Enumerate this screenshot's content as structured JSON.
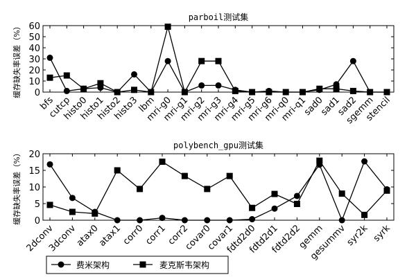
{
  "chart_data": [
    {
      "type": "line",
      "title": "parboil测试集",
      "ylabel": "缓存缺失率误差（%）",
      "ylim": [
        0,
        60
      ],
      "yticks": [
        0,
        10,
        20,
        30,
        40,
        50,
        60
      ],
      "categories": [
        "bfs",
        "cutcp",
        "histo0",
        "histo1",
        "histo2",
        "histo3",
        "lbm",
        "mri-g0",
        "mri-g1",
        "mri-g2",
        "mri-g3",
        "mri-g4",
        "mri-g5",
        "mri-g6",
        "mri-q0",
        "mri-q1",
        "sad0",
        "sad1",
        "sad2",
        "sgemm",
        "stencil"
      ],
      "series": [
        {
          "name": "费米架构",
          "marker": "circle",
          "values": [
            31,
            1,
            3,
            4,
            0,
            16,
            0,
            28,
            0,
            6,
            6,
            2,
            0,
            1,
            0,
            0,
            2,
            7,
            28,
            0,
            0
          ]
        },
        {
          "name": "麦克斯韦架构",
          "marker": "square",
          "values": [
            13,
            15,
            3,
            8,
            0,
            2,
            0,
            59,
            0,
            28,
            28,
            1,
            0,
            0,
            0,
            0,
            3,
            3,
            1,
            0,
            0
          ]
        }
      ],
      "grid": false
    },
    {
      "type": "line",
      "title": "polybench_gpu测试集",
      "ylabel": "缓存缺失率误差（%）",
      "ylim": [
        0,
        20
      ],
      "yticks": [
        0,
        5,
        10,
        15,
        20
      ],
      "categories": [
        "2dconv",
        "3dconv",
        "atax0",
        "atax1",
        "corr0",
        "corr1",
        "corr2",
        "covar0",
        "covar1",
        "fdtd2d0",
        "fdtd2d1",
        "fdtd2d2",
        "gemm",
        "gesummv",
        "syr2k",
        "syrk"
      ],
      "series": [
        {
          "name": "费米架构",
          "marker": "circle",
          "values": [
            16.8,
            6.7,
            2.5,
            0,
            0,
            0.7,
            0,
            0,
            0,
            0.3,
            3.5,
            7.3,
            16.7,
            0,
            17.7,
            9.3
          ]
        },
        {
          "name": "麦克斯韦架构",
          "marker": "square",
          "values": [
            4.6,
            2.5,
            2.0,
            15.0,
            9.4,
            17.6,
            13.3,
            9.4,
            13.3,
            3.7,
            7.9,
            4.9,
            17.9,
            8.0,
            1.6,
            8.9
          ]
        }
      ],
      "grid": false
    }
  ],
  "legend": {
    "placement": "bottom-left",
    "items": [
      {
        "label": "费米架构",
        "marker": "circle"
      },
      {
        "label": "麦克斯韦架构",
        "marker": "square"
      }
    ]
  },
  "colors": {
    "line": "#000000",
    "background": "#ffffff"
  }
}
